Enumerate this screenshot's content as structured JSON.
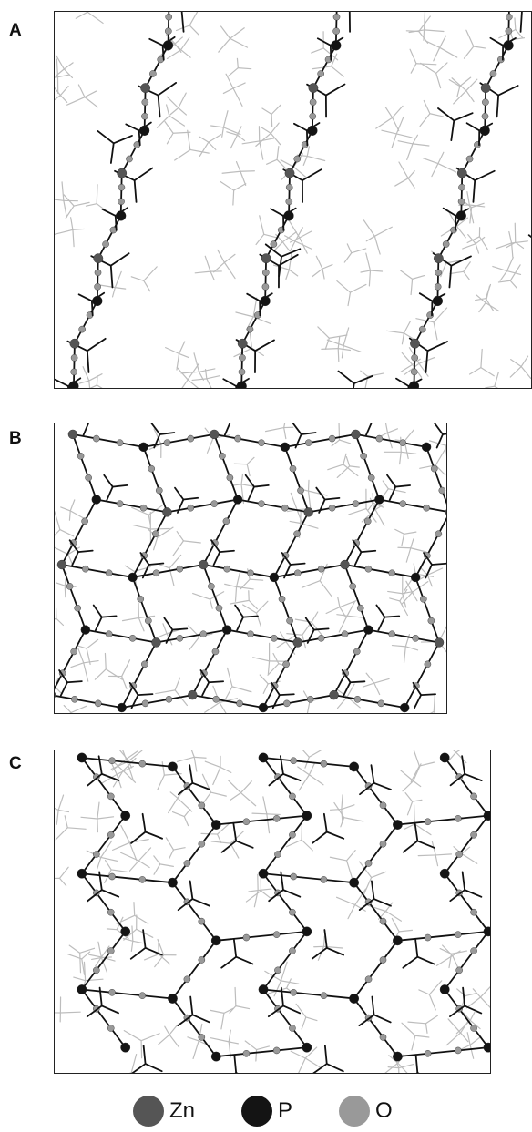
{
  "panels": [
    {
      "label": "A"
    },
    {
      "label": "B"
    },
    {
      "label": "C"
    }
  ],
  "colors": {
    "zn": "#555555",
    "p": "#141414",
    "o": "#999999",
    "bond_dark": "#111111",
    "bond_light": "#bdbdbd"
  },
  "legend": {
    "items": [
      {
        "label": "Zn",
        "color": "#555555"
      },
      {
        "label": "P",
        "color": "#141414"
      },
      {
        "label": "O",
        "color": "#999999"
      }
    ]
  }
}
